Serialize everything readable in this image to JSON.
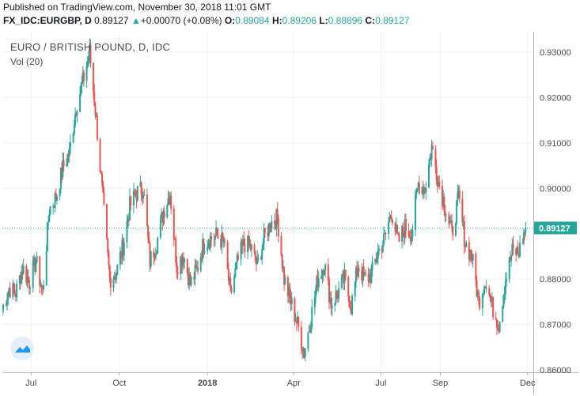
{
  "header": {
    "published": "Published on TradingView.com, November 30, 2018 11:01 GMT",
    "symbol": "FX_IDC:EURGBP, D",
    "last": "0.89127",
    "arrow": "▲",
    "change": "+0.00070 (+0.08%)",
    "o_label": "O:",
    "o_value": "0.89084",
    "h_label": "H:",
    "h_value": "0.89206",
    "l_label": "L:",
    "l_value": "0.88896",
    "c_label": "C:",
    "c_value": "0.89127"
  },
  "legend": {
    "title": "EURO / BRITISH POUND, D, IDC",
    "volume": "Vol (20)"
  },
  "colors": {
    "up": "#26a69a",
    "down": "#ef5350",
    "price_line": "#26a69a",
    "grid": "#eef1f5",
    "axis_text": "#4a4a4a"
  },
  "logo_icon": "tradingview-logo-icon",
  "chart_data": {
    "type": "candlestick",
    "y_ticks": [
      "0.93000",
      "0.92000",
      "0.91000",
      "0.90000",
      "0.88000",
      "0.87000",
      "0.86000"
    ],
    "y_tick_values": [
      0.93,
      0.92,
      0.91,
      0.9,
      0.88,
      0.87,
      0.86
    ],
    "ylim": [
      0.8595,
      0.9345
    ],
    "x_ticks": [
      "Jul",
      "Oct",
      "2018",
      "Apr",
      "Jul",
      "Sep",
      "Dec"
    ],
    "x_tick_dates": [
      "2017-07-01",
      "2017-10-01",
      "2018-01-01",
      "2018-04-01",
      "2018-07-01",
      "2018-09-01",
      "2018-12-01"
    ],
    "xlim": [
      "2017-06-01",
      "2018-12-07"
    ],
    "last_price": 0.89127,
    "last_price_label": "0.89127",
    "grid": true,
    "closes": [
      [
        "2017-06-01",
        0.8735
      ],
      [
        "2017-06-08",
        0.878
      ],
      [
        "2017-06-15",
        0.877
      ],
      [
        "2017-06-22",
        0.8825
      ],
      [
        "2017-06-29",
        0.8795
      ],
      [
        "2017-07-06",
        0.884
      ],
      [
        "2017-07-13",
        0.877
      ],
      [
        "2017-07-20",
        0.8955
      ],
      [
        "2017-07-27",
        0.898
      ],
      [
        "2017-08-03",
        0.9045
      ],
      [
        "2017-08-10",
        0.908
      ],
      [
        "2017-08-17",
        0.918
      ],
      [
        "2017-08-24",
        0.9235
      ],
      [
        "2017-08-31",
        0.93
      ],
      [
        "2017-09-07",
        0.915
      ],
      [
        "2017-09-14",
        0.897
      ],
      [
        "2017-09-21",
        0.88
      ],
      [
        "2017-09-28",
        0.8815
      ],
      [
        "2017-10-05",
        0.8875
      ],
      [
        "2017-10-12",
        0.896
      ],
      [
        "2017-10-19",
        0.899
      ],
      [
        "2017-10-26",
        0.9
      ],
      [
        "2017-11-02",
        0.884
      ],
      [
        "2017-11-09",
        0.888
      ],
      [
        "2017-11-16",
        0.895
      ],
      [
        "2017-11-23",
        0.899
      ],
      [
        "2017-11-30",
        0.883
      ],
      [
        "2017-12-07",
        0.8855
      ],
      [
        "2017-12-14",
        0.879
      ],
      [
        "2017-12-21",
        0.882
      ],
      [
        "2017-12-28",
        0.888
      ],
      [
        "2018-01-04",
        0.889
      ],
      [
        "2018-01-11",
        0.8895
      ],
      [
        "2018-01-18",
        0.888
      ],
      [
        "2018-01-25",
        0.8765
      ],
      [
        "2018-02-01",
        0.8835
      ],
      [
        "2018-02-08",
        0.888
      ],
      [
        "2018-02-15",
        0.887
      ],
      [
        "2018-02-22",
        0.883
      ],
      [
        "2018-03-01",
        0.889
      ],
      [
        "2018-03-08",
        0.8925
      ],
      [
        "2018-03-15",
        0.8935
      ],
      [
        "2018-03-22",
        0.88
      ],
      [
        "2018-03-29",
        0.875
      ],
      [
        "2018-04-05",
        0.87
      ],
      [
        "2018-04-12",
        0.864
      ],
      [
        "2018-04-19",
        0.8715
      ],
      [
        "2018-04-26",
        0.88
      ],
      [
        "2018-05-03",
        0.8835
      ],
      [
        "2018-05-10",
        0.8745
      ],
      [
        "2018-05-17",
        0.877
      ],
      [
        "2018-05-24",
        0.88
      ],
      [
        "2018-05-31",
        0.874
      ],
      [
        "2018-06-07",
        0.883
      ],
      [
        "2018-06-14",
        0.88
      ],
      [
        "2018-06-21",
        0.881
      ],
      [
        "2018-06-28",
        0.886
      ],
      [
        "2018-07-05",
        0.889
      ],
      [
        "2018-07-12",
        0.895
      ],
      [
        "2018-07-19",
        0.888
      ],
      [
        "2018-07-26",
        0.8915
      ],
      [
        "2018-08-02",
        0.89
      ],
      [
        "2018-08-09",
        0.901
      ],
      [
        "2018-08-16",
        0.9
      ],
      [
        "2018-08-23",
        0.909
      ],
      [
        "2018-08-30",
        0.9015
      ],
      [
        "2018-09-06",
        0.896
      ],
      [
        "2018-09-13",
        0.89
      ],
      [
        "2018-09-20",
        0.898
      ],
      [
        "2018-09-27",
        0.888
      ],
      [
        "2018-10-04",
        0.885
      ],
      [
        "2018-10-11",
        0.875
      ],
      [
        "2018-10-18",
        0.88
      ],
      [
        "2018-10-25",
        0.874
      ],
      [
        "2018-11-01",
        0.87
      ],
      [
        "2018-11-08",
        0.88
      ],
      [
        "2018-11-15",
        0.886
      ],
      [
        "2018-11-22",
        0.886
      ],
      [
        "2018-11-29",
        0.8913
      ]
    ]
  }
}
